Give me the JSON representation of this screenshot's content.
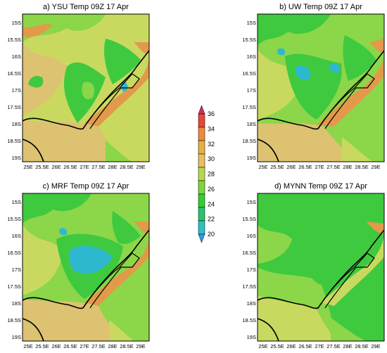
{
  "figure": {
    "panels": [
      {
        "id": "a",
        "title": "a) YSU Temp 09Z 17 Apr",
        "scheme": "ysu"
      },
      {
        "id": "b",
        "title": "b) UW Temp 09Z 17 Apr",
        "scheme": "uw"
      },
      {
        "id": "c",
        "title": "c) MRF Temp 09Z 17 Apr",
        "scheme": "mrf"
      },
      {
        "id": "d",
        "title": "d) MYNN Temp 09Z 17 Apr",
        "scheme": "mynn"
      }
    ],
    "lat_labels": [
      "15S",
      "15.5S",
      "16S",
      "16.5S",
      "17S",
      "17.5S",
      "18S",
      "18.5S",
      "19S"
    ],
    "lon_labels": [
      "25E",
      "25.5E",
      "26E",
      "26.5E",
      "27E",
      "27.5E",
      "28E",
      "28.5E",
      "29E"
    ]
  },
  "colorbar": {
    "levels": [
      "20",
      "22",
      "24",
      "26",
      "28",
      "30",
      "32",
      "34",
      "36"
    ],
    "colors": [
      "#2a9cf2",
      "#2cc1c4",
      "#28c46e",
      "#33cc33",
      "#7dd63a",
      "#b7d84a",
      "#e8c060",
      "#e8b040",
      "#ef8a3c",
      "#e8483a",
      "#d02a72"
    ]
  },
  "map_colors": {
    "cool": "#2eb8d0",
    "green": "#3fc93f",
    "lightgreen": "#8cd649",
    "yellowgreen": "#c9d960",
    "tan": "#dcc271",
    "orange": "#e29a4a",
    "boundary": "#000000"
  }
}
